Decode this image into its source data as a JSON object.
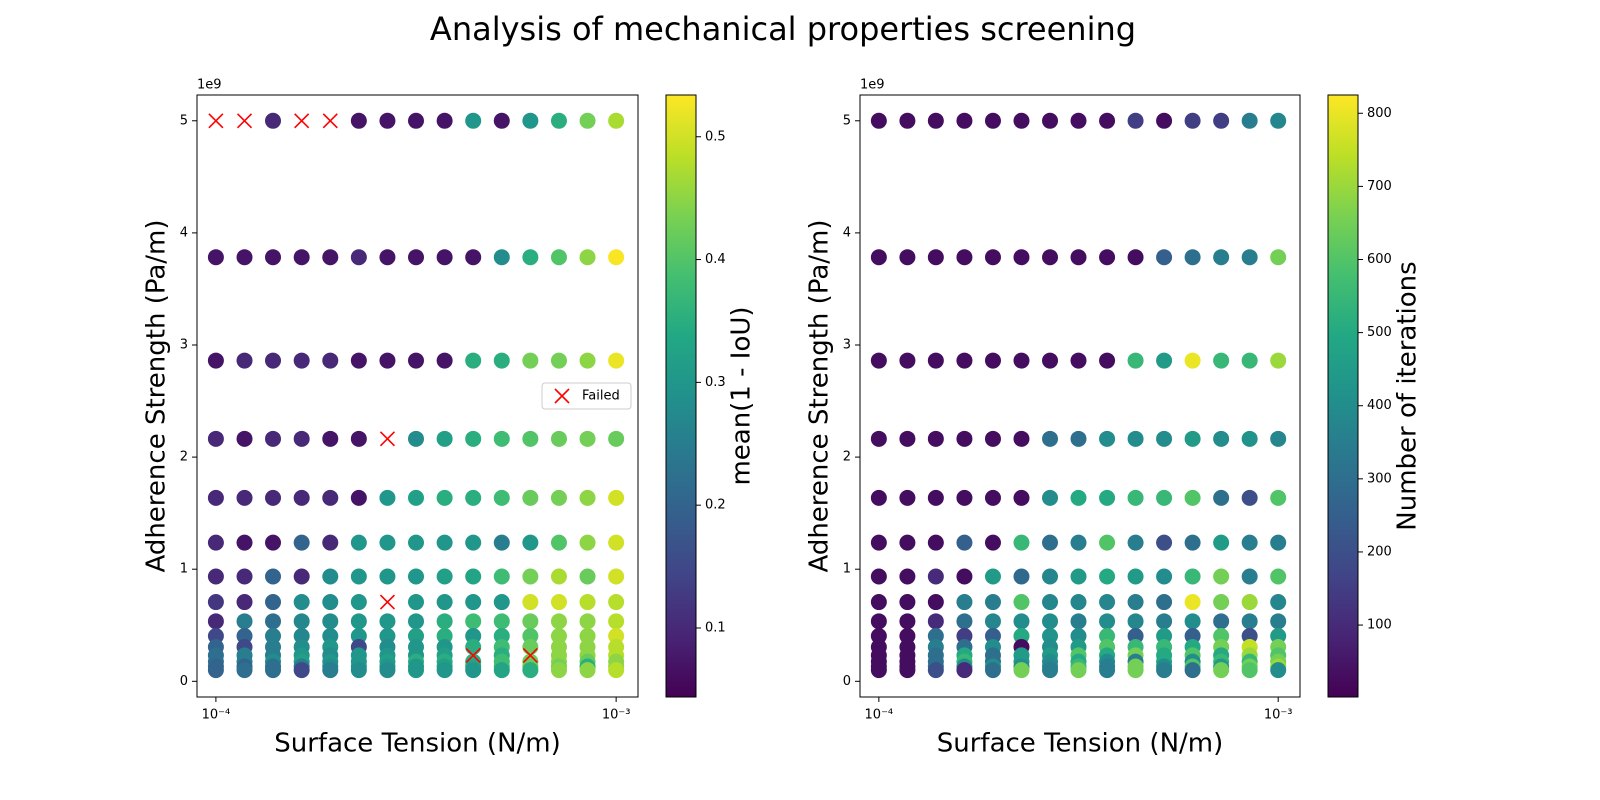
{
  "title": "Analysis of mechanical properties screening",
  "chart_data": [
    {
      "type": "scatter",
      "xlabel": "Surface Tension (N/m)",
      "ylabel": "Adherence Strength (Pa/m)",
      "y_offset_label": "1e9",
      "log_x": true,
      "colormap": "viridis",
      "x": [
        0.0001,
        0.0001179,
        0.0001389,
        0.0001638,
        0.0001931,
        0.0002276,
        0.0002683,
        0.0003162,
        0.0003728,
        0.0004394,
        0.0005179,
        0.0006105,
        0.0007197,
        0.0008483,
        0.001
      ],
      "y": [
        5,
        3.783,
        2.861,
        2.163,
        1.636,
        1.237,
        0.935,
        0.707,
        0.535,
        0.404,
        0.306,
        0.231,
        0.175,
        0.132,
        0.1
      ],
      "values": [
        [
          null,
          null,
          0.1,
          null,
          null,
          0.07,
          0.07,
          0.07,
          0.07,
          0.3,
          0.07,
          0.3,
          0.35,
          0.43,
          0.47
        ],
        [
          0.07,
          0.07,
          0.07,
          0.07,
          0.07,
          0.1,
          0.07,
          0.07,
          0.07,
          0.07,
          0.28,
          0.35,
          0.4,
          0.45,
          0.53
        ],
        [
          0.07,
          0.1,
          0.1,
          0.1,
          0.1,
          0.07,
          0.07,
          0.07,
          0.07,
          0.35,
          0.35,
          0.43,
          0.43,
          0.45,
          0.52
        ],
        [
          0.1,
          0.07,
          0.1,
          0.1,
          0.07,
          0.07,
          null,
          0.28,
          0.32,
          0.35,
          0.38,
          0.4,
          0.42,
          0.43,
          0.42
        ],
        [
          0.1,
          0.1,
          0.1,
          0.1,
          0.1,
          0.07,
          0.3,
          0.32,
          0.35,
          0.35,
          0.38,
          0.42,
          0.43,
          0.45,
          0.5
        ],
        [
          0.1,
          0.07,
          0.07,
          0.2,
          0.1,
          0.3,
          0.3,
          0.3,
          0.3,
          0.3,
          0.25,
          0.3,
          0.4,
          0.45,
          0.5
        ],
        [
          0.1,
          0.1,
          0.2,
          0.1,
          0.28,
          0.3,
          0.3,
          0.3,
          0.32,
          0.33,
          0.38,
          0.43,
          0.47,
          0.42,
          0.5
        ],
        [
          0.12,
          0.1,
          0.2,
          0.28,
          0.28,
          0.3,
          null,
          0.3,
          0.3,
          0.3,
          0.3,
          0.5,
          0.5,
          0.48,
          0.48
        ],
        [
          0.1,
          0.25,
          0.22,
          0.27,
          0.28,
          0.3,
          0.3,
          0.3,
          0.35,
          0.38,
          0.38,
          0.42,
          0.45,
          0.45,
          0.48
        ],
        [
          0.15,
          0.2,
          0.25,
          0.27,
          0.28,
          0.3,
          0.3,
          0.32,
          0.35,
          0.3,
          0.35,
          0.4,
          0.45,
          0.45,
          0.5
        ],
        [
          0.2,
          0.15,
          0.25,
          0.28,
          0.3,
          0.15,
          0.28,
          0.3,
          0.3,
          0.35,
          0.38,
          0.42,
          0.45,
          0.45,
          0.48
        ],
        [
          0.22,
          0.25,
          0.25,
          0.3,
          0.28,
          0.3,
          0.3,
          0.3,
          0.32,
          null,
          0.35,
          null,
          0.45,
          0.45,
          0.48
        ],
        [
          0.22,
          0.25,
          0.28,
          0.32,
          0.3,
          0.3,
          0.32,
          0.35,
          0.35,
          0.35,
          0.38,
          0.42,
          0.45,
          0.42,
          0.45
        ],
        [
          0.2,
          0.2,
          0.22,
          0.25,
          0.28,
          0.3,
          0.3,
          0.3,
          0.32,
          0.33,
          0.38,
          0.42,
          0.43,
          0.35,
          0.45
        ],
        [
          0.2,
          0.22,
          0.22,
          0.15,
          0.25,
          0.28,
          0.28,
          0.3,
          0.3,
          0.3,
          0.33,
          0.35,
          0.45,
          0.45,
          0.48
        ]
      ],
      "failed": {
        "name": "Failed",
        "color": "red",
        "x": [
          0.0001,
          0.0001179,
          0.0001638,
          0.0001931,
          0.0002683,
          0.0002683,
          0.0004394,
          0.0006105
        ],
        "y": [
          5,
          5,
          5,
          5,
          2.163,
          0.707,
          0.231,
          0.231
        ]
      },
      "legend": "right",
      "xlim": [
        8.97e-05,
        0.001134
      ],
      "ylim": [
        -0.14,
        5.23
      ],
      "xticks": [
        {
          "value": 0.0001,
          "label": "10⁻⁴"
        },
        {
          "value": 0.001,
          "label": "10⁻³"
        }
      ],
      "yticks": [
        0,
        1,
        2,
        3,
        4,
        5
      ],
      "colorbar": {
        "label": "mean(1 - IoU)",
        "lim": [
          0.0438,
          0.534
        ],
        "ticks": [
          0.1,
          0.2,
          0.3,
          0.4,
          0.5
        ]
      }
    },
    {
      "type": "scatter",
      "xlabel": "Surface Tension (N/m)",
      "ylabel": "Adherence Strength (Pa/m)",
      "y_offset_label": "1e9",
      "log_x": true,
      "colormap": "viridis",
      "x": [
        0.0001,
        0.0001179,
        0.0001389,
        0.0001638,
        0.0001931,
        0.0002276,
        0.0002683,
        0.0003162,
        0.0003728,
        0.0004394,
        0.0005179,
        0.0006105,
        0.0007197,
        0.0008483,
        0.001
      ],
      "y": [
        5,
        3.783,
        2.861,
        2.163,
        1.636,
        1.237,
        0.935,
        0.707,
        0.535,
        0.404,
        0.306,
        0.231,
        0.175,
        0.132,
        0.1
      ],
      "values": [
        [
          30,
          30,
          30,
          30,
          30,
          30,
          30,
          30,
          30,
          150,
          30,
          150,
          150,
          350,
          380
        ],
        [
          30,
          30,
          30,
          30,
          30,
          30,
          30,
          30,
          30,
          30,
          250,
          300,
          350,
          350,
          650
        ],
        [
          30,
          30,
          30,
          30,
          30,
          30,
          30,
          30,
          30,
          550,
          450,
          800,
          550,
          550,
          700
        ],
        [
          30,
          30,
          30,
          30,
          30,
          30,
          300,
          300,
          400,
          400,
          400,
          450,
          400,
          420,
          380
        ],
        [
          30,
          30,
          30,
          30,
          30,
          30,
          400,
          500,
          500,
          550,
          550,
          600,
          300,
          200,
          600
        ],
        [
          30,
          30,
          30,
          250,
          30,
          550,
          300,
          350,
          600,
          350,
          200,
          300,
          450,
          350,
          350
        ],
        [
          30,
          30,
          100,
          30,
          450,
          280,
          380,
          450,
          500,
          450,
          400,
          550,
          650,
          350,
          600
        ],
        [
          30,
          30,
          30,
          350,
          350,
          600,
          380,
          380,
          380,
          350,
          300,
          800,
          650,
          700,
          380
        ],
        [
          30,
          30,
          100,
          300,
          380,
          400,
          400,
          350,
          400,
          380,
          350,
          400,
          300,
          350,
          350
        ],
        [
          30,
          30,
          300,
          150,
          250,
          500,
          420,
          400,
          550,
          250,
          450,
          250,
          600,
          200,
          450
        ],
        [
          30,
          30,
          350,
          300,
          400,
          30,
          400,
          450,
          600,
          550,
          550,
          500,
          650,
          750,
          650
        ],
        [
          30,
          30,
          300,
          500,
          300,
          450,
          450,
          600,
          500,
          650,
          500,
          600,
          500,
          700,
          600
        ],
        [
          30,
          30,
          300,
          550,
          300,
          450,
          400,
          500,
          400,
          350,
          500,
          400,
          550,
          550,
          650
        ],
        [
          30,
          30,
          300,
          400,
          400,
          400,
          380,
          550,
          350,
          650,
          400,
          600,
          450,
          650,
          700
        ],
        [
          30,
          30,
          200,
          100,
          300,
          650,
          350,
          650,
          350,
          650,
          350,
          300,
          650,
          600,
          400
        ]
      ],
      "xlim": [
        8.97e-05,
        0.001134
      ],
      "ylim": [
        -0.14,
        5.23
      ],
      "xticks": [
        {
          "value": 0.0001,
          "label": "10⁻⁴"
        },
        {
          "value": 0.001,
          "label": "10⁻³"
        }
      ],
      "yticks": [
        0,
        1,
        2,
        3,
        4,
        5
      ],
      "colorbar": {
        "label": "Number of iterations",
        "lim": [
          1.6,
          825
        ],
        "ticks": [
          100,
          200,
          300,
          400,
          500,
          600,
          700,
          800
        ]
      }
    }
  ]
}
